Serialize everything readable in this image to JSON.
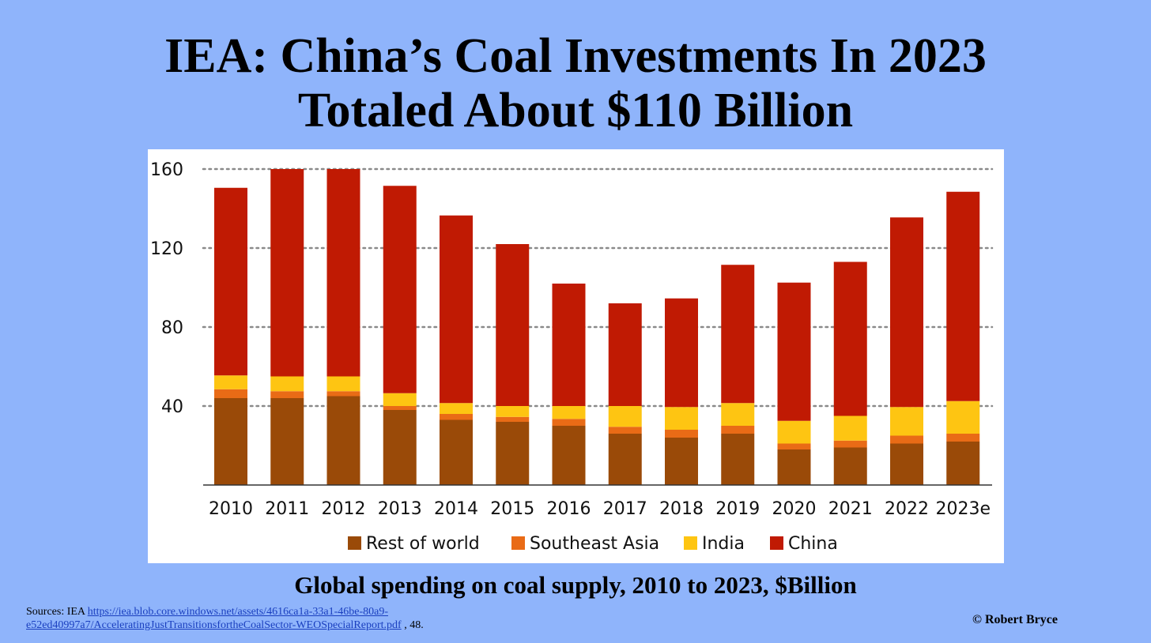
{
  "header": {
    "title_line_1": "IEA: China’s Coal Investments In 2023",
    "title_line_2": "Totaled About $110 Billion"
  },
  "caption": "Global spending on coal supply, 2010 to 2023, $Billion",
  "sources": {
    "prefix": "Sources:  IEA ",
    "link_line_1": "https://iea.blob.core.windows.net/assets/4616ca1a-33a1-46be-80a9-",
    "link_line_2": "e52ed40997a7/AcceleratingJustTransitionsfortheCoalSector-WEOSpecialReport.pdf",
    "suffix": " , 48."
  },
  "copyright": "© Robert Bryce",
  "colors": {
    "background": "#8fb4fb",
    "rest_of_world": "#9a4a08",
    "southeast_asia": "#e96b16",
    "india": "#fec512",
    "china": "#c01a03"
  },
  "chart_data": {
    "type": "bar",
    "stacked": true,
    "categories": [
      "2010",
      "2011",
      "2012",
      "2013",
      "2014",
      "2015",
      "2016",
      "2017",
      "2018",
      "2019",
      "2020",
      "2021",
      "2022",
      "2023e"
    ],
    "series": [
      {
        "name": "Rest of world",
        "color": "#9a4a08",
        "values": [
          44,
          44,
          45,
          38,
          33,
          32,
          30,
          26,
          24,
          26,
          18,
          19,
          21,
          22
        ]
      },
      {
        "name": "Southeast Asia",
        "color": "#e96b16",
        "values": [
          4.5,
          3.5,
          2.5,
          2,
          3,
          2.5,
          3.5,
          3.5,
          4,
          4,
          3,
          3.5,
          4,
          4
        ]
      },
      {
        "name": "India",
        "color": "#fec512",
        "values": [
          7,
          7.5,
          7.5,
          6.5,
          5.5,
          5.5,
          6.5,
          10.5,
          11.5,
          11.5,
          11.5,
          12.5,
          14.5,
          16.5
        ]
      },
      {
        "name": "China",
        "color": "#c01a03",
        "values": [
          95,
          105,
          105,
          105,
          95,
          82,
          62,
          52,
          55,
          70,
          70,
          78,
          96,
          106
        ]
      }
    ],
    "y_ticks": [
      "40",
      "80",
      "120",
      "160"
    ],
    "ylim": [
      0,
      160
    ],
    "grid": "dotted horizontal",
    "legend": "bottom"
  }
}
